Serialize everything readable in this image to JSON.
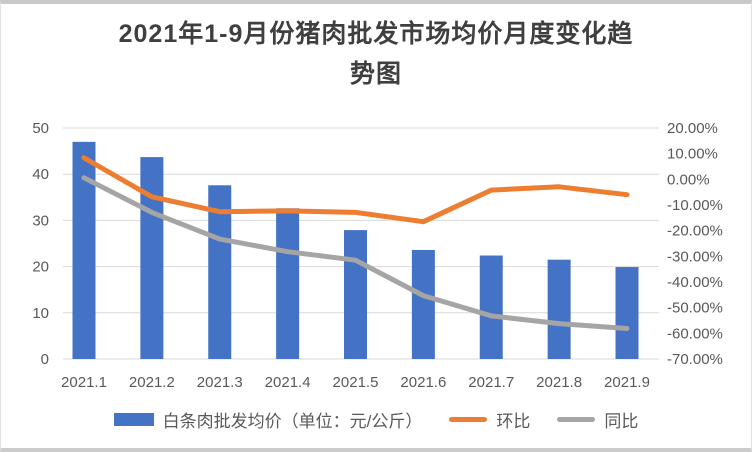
{
  "title": {
    "line1": "2021年1-9月份猪肉批发市场均价月度变化趋",
    "line2": "势图"
  },
  "chart_data": {
    "type": "bar+line combo",
    "title": "2021年1-9月份猪肉批发市场均价月度变化趋势图",
    "categories": [
      "2021.1",
      "2021.2",
      "2021.3",
      "2021.4",
      "2021.5",
      "2021.6",
      "2021.7",
      "2021.8",
      "2021.9"
    ],
    "series": [
      {
        "name": "白条肉批发均价（单位：元/公斤）",
        "chart_type": "bar",
        "axis": "left",
        "color": "#4472C4",
        "values": [
          47.0,
          43.7,
          37.6,
          32.6,
          27.9,
          23.6,
          22.4,
          21.5,
          19.9
        ]
      },
      {
        "name": "环比",
        "chart_type": "line",
        "axis": "right",
        "color": "#ED7D31",
        "values_percent": [
          8.4,
          -6.8,
          -12.6,
          -12.3,
          -12.9,
          -16.5,
          -4.2,
          -2.9,
          -6.0
        ]
      },
      {
        "name": "同比",
        "chart_type": "line",
        "axis": "right",
        "color": "#A5A5A5",
        "values_percent": [
          0.6,
          -12.9,
          -23.3,
          -28.2,
          -31.5,
          -45.3,
          -53.2,
          -56.2,
          -58.1
        ]
      }
    ],
    "left_axis": {
      "min": 0,
      "max": 50,
      "step": 10,
      "tick_labels": [
        "0",
        "10",
        "20",
        "30",
        "40",
        "50"
      ]
    },
    "right_axis": {
      "min": -70,
      "max": 20,
      "step": 10,
      "tick_labels_top_to_bottom": [
        "20.00%",
        "10.00%",
        "0.00%",
        "-10.00%",
        "-20.00%",
        "-30.00%",
        "-40.00%",
        "-50.00%",
        "-60.00%",
        "-70.00%"
      ]
    },
    "grid": {
      "show": true,
      "color": "#D9D9D9"
    },
    "axis_text_color": "#595959",
    "legend_position": "bottom",
    "bar4_top_cap_color": "#44546A"
  },
  "legend": {
    "items": [
      {
        "label": "白条肉批发均价（单位：元/公斤）",
        "swatch": "bar",
        "color": "#4472C4"
      },
      {
        "label": "环比",
        "swatch": "line",
        "color": "#ED7D31"
      },
      {
        "label": "同比",
        "swatch": "line",
        "color": "#A5A5A5"
      }
    ]
  }
}
